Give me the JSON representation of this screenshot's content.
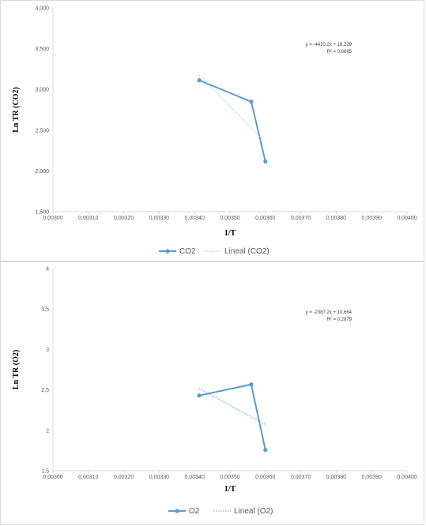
{
  "chart_data": [
    {
      "type": "scatter",
      "xlabel": "1/T",
      "ylabel": "Ln TR (CO2)",
      "xlim": [
        0.003,
        0.004
      ],
      "ylim": [
        1.5,
        4.0
      ],
      "x_ticks": [
        "0,00300",
        "0,00310",
        "0,00320",
        "0,00330",
        "0,00340",
        "0,00350",
        "0,00360",
        "0,00370",
        "0,00380",
        "0,00390",
        "0,00400"
      ],
      "y_ticks": [
        "1,500",
        "2,000",
        "2,500",
        "3,000",
        "3,500",
        "4,000"
      ],
      "series": [
        {
          "name": "CO2",
          "color": "#5b9bd5",
          "style": "solid-markers",
          "x": [
            0.003413,
            0.00356,
            0.0036
          ],
          "y": [
            3.112,
            2.849,
            2.116
          ]
        },
        {
          "name": "Lineal (CO2)",
          "color": "#9dc3e6",
          "style": "dotted-trend",
          "x": [
            0.003413,
            0.00359
          ],
          "y": [
            3.176,
            2.397
          ]
        }
      ],
      "trendline_equation": "y = -4410,2x + 18,229",
      "trendline_r2": "R² = 0,6895",
      "legend_position": "bottom"
    },
    {
      "type": "scatter",
      "xlabel": "1/T",
      "ylabel": "Ln TR (O2)",
      "xlim": [
        0.003,
        0.004
      ],
      "ylim": [
        1.5,
        4.0
      ],
      "x_ticks": [
        "0,00300",
        "0,00310",
        "0,00320",
        "0,00330",
        "0,00340",
        "0,00350",
        "0,00360",
        "0,00370",
        "0,00380",
        "0,00390",
        "0,00400"
      ],
      "y_ticks": [
        "1,5",
        "2",
        "2,5",
        "3",
        "3,5",
        "4"
      ],
      "series": [
        {
          "name": "O2",
          "color": "#5b9bd5",
          "style": "solid-markers",
          "x": [
            0.003413,
            0.00356,
            0.0036
          ],
          "y": [
            2.43,
            2.567,
            1.757
          ]
        },
        {
          "name": "Lineal (O2)",
          "color": "#5b9bd5",
          "style": "dotted-trend",
          "x": [
            0.003413,
            0.0036
          ],
          "y": [
            2.517,
            2.07
          ]
        }
      ],
      "trendline_equation": "y = -2387,2x + 10,664",
      "trendline_r2": "R² = 0,2879",
      "legend_position": "bottom"
    }
  ]
}
